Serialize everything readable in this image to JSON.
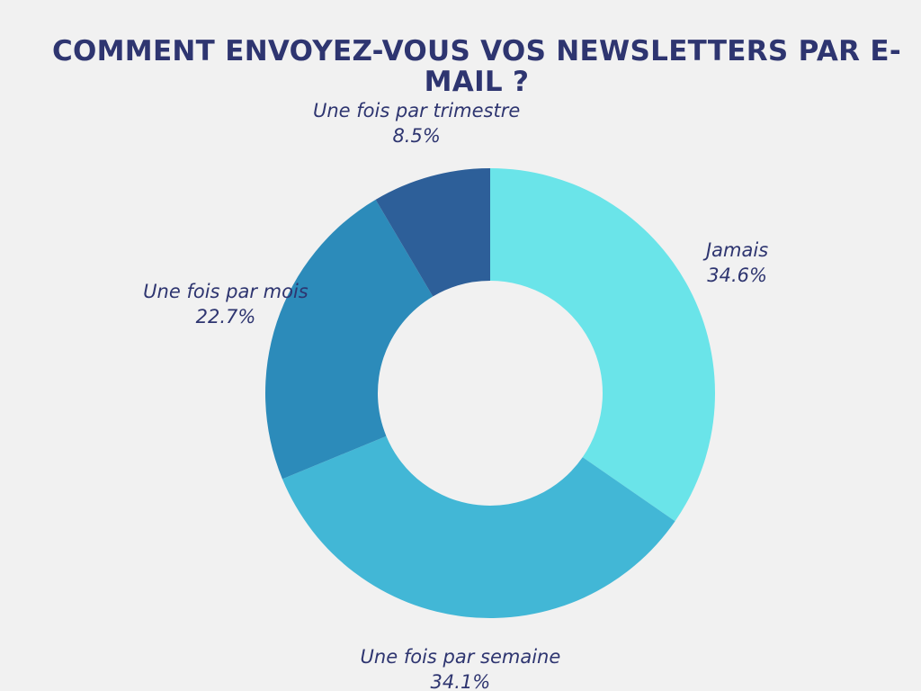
{
  "chart_data": {
    "type": "donut",
    "title": "COMMENT ENVOYEZ-VOUS VOS NEWSLETTERS PAR E-MAIL ?",
    "categories": [
      "Jamais",
      "Une fois par semaine",
      "Une fois par mois",
      "Une fois par trimestre"
    ],
    "values": [
      34.6,
      34.1,
      22.7,
      8.5
    ],
    "value_labels": [
      "34.6%",
      "34.1%",
      "22.7%",
      "8.5%"
    ],
    "colors": [
      "#6ae4e9",
      "#42b7d6",
      "#2c8bba",
      "#2d5f99"
    ]
  }
}
